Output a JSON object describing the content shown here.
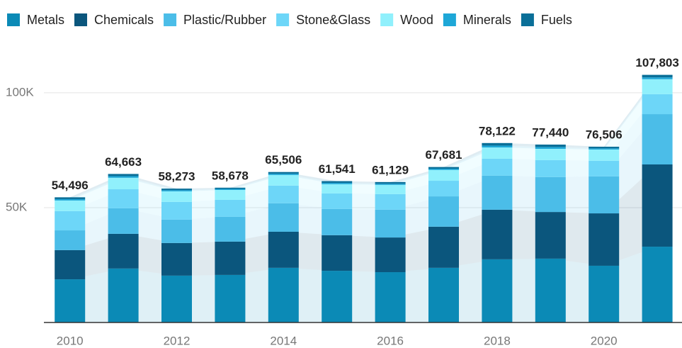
{
  "chart_data": {
    "type": "stacked_bar",
    "categories": [
      "2010",
      null,
      "2012",
      null,
      "2014",
      null,
      "2016",
      null,
      "2018",
      null,
      "2020",
      null
    ],
    "series": [
      {
        "name": "Metals",
        "color": "#0b8ab6",
        "values": [
          18800,
          23500,
          20400,
          20700,
          23800,
          22500,
          21900,
          23800,
          27500,
          27800,
          24700,
          33000
        ]
      },
      {
        "name": "Chemicals",
        "color": "#0b567d",
        "values": [
          12700,
          15100,
          14200,
          14500,
          15700,
          15500,
          15100,
          17900,
          21600,
          20300,
          22800,
          35800
        ]
      },
      {
        "name": "Plastic/Rubber",
        "color": "#4bbde8",
        "values": [
          8600,
          11100,
          10200,
          10800,
          12400,
          11400,
          12100,
          13200,
          14800,
          15200,
          16100,
          21900
        ]
      },
      {
        "name": "Stone&Glass",
        "color": "#6dd6f8",
        "values": [
          8400,
          8300,
          7700,
          7400,
          7700,
          6800,
          6800,
          6800,
          7400,
          7400,
          6800,
          8700
        ]
      },
      {
        "name": "Wood",
        "color": "#90f0fc",
        "values": [
          4600,
          5000,
          4600,
          4300,
          4600,
          4000,
          4000,
          4700,
          4900,
          4900,
          4900,
          6500
        ]
      },
      {
        "name": "Minerals",
        "color": "#1ea7d7",
        "values": [
          600,
          700,
          500,
          450,
          550,
          550,
          500,
          550,
          800,
          800,
          500,
          800
        ]
      },
      {
        "name": "Fuels",
        "color": "#0a6f98",
        "values": [
          796,
          963,
          673,
          528,
          756,
          791,
          729,
          731,
          1122,
          1040,
          706,
          1103
        ]
      }
    ],
    "total_labels": [
      "54,496",
      "64,663",
      "58,273",
      "58,678",
      "65,506",
      "61,541",
      "61,129",
      "67,681",
      "78,122",
      "77,440",
      "76,506",
      "107,803"
    ],
    "ylim": [
      0,
      112000
    ],
    "yticks": [
      {
        "value": 50000,
        "label": "50K"
      },
      {
        "value": 100000,
        "label": "100K"
      }
    ],
    "grid": true,
    "legend": "top"
  }
}
